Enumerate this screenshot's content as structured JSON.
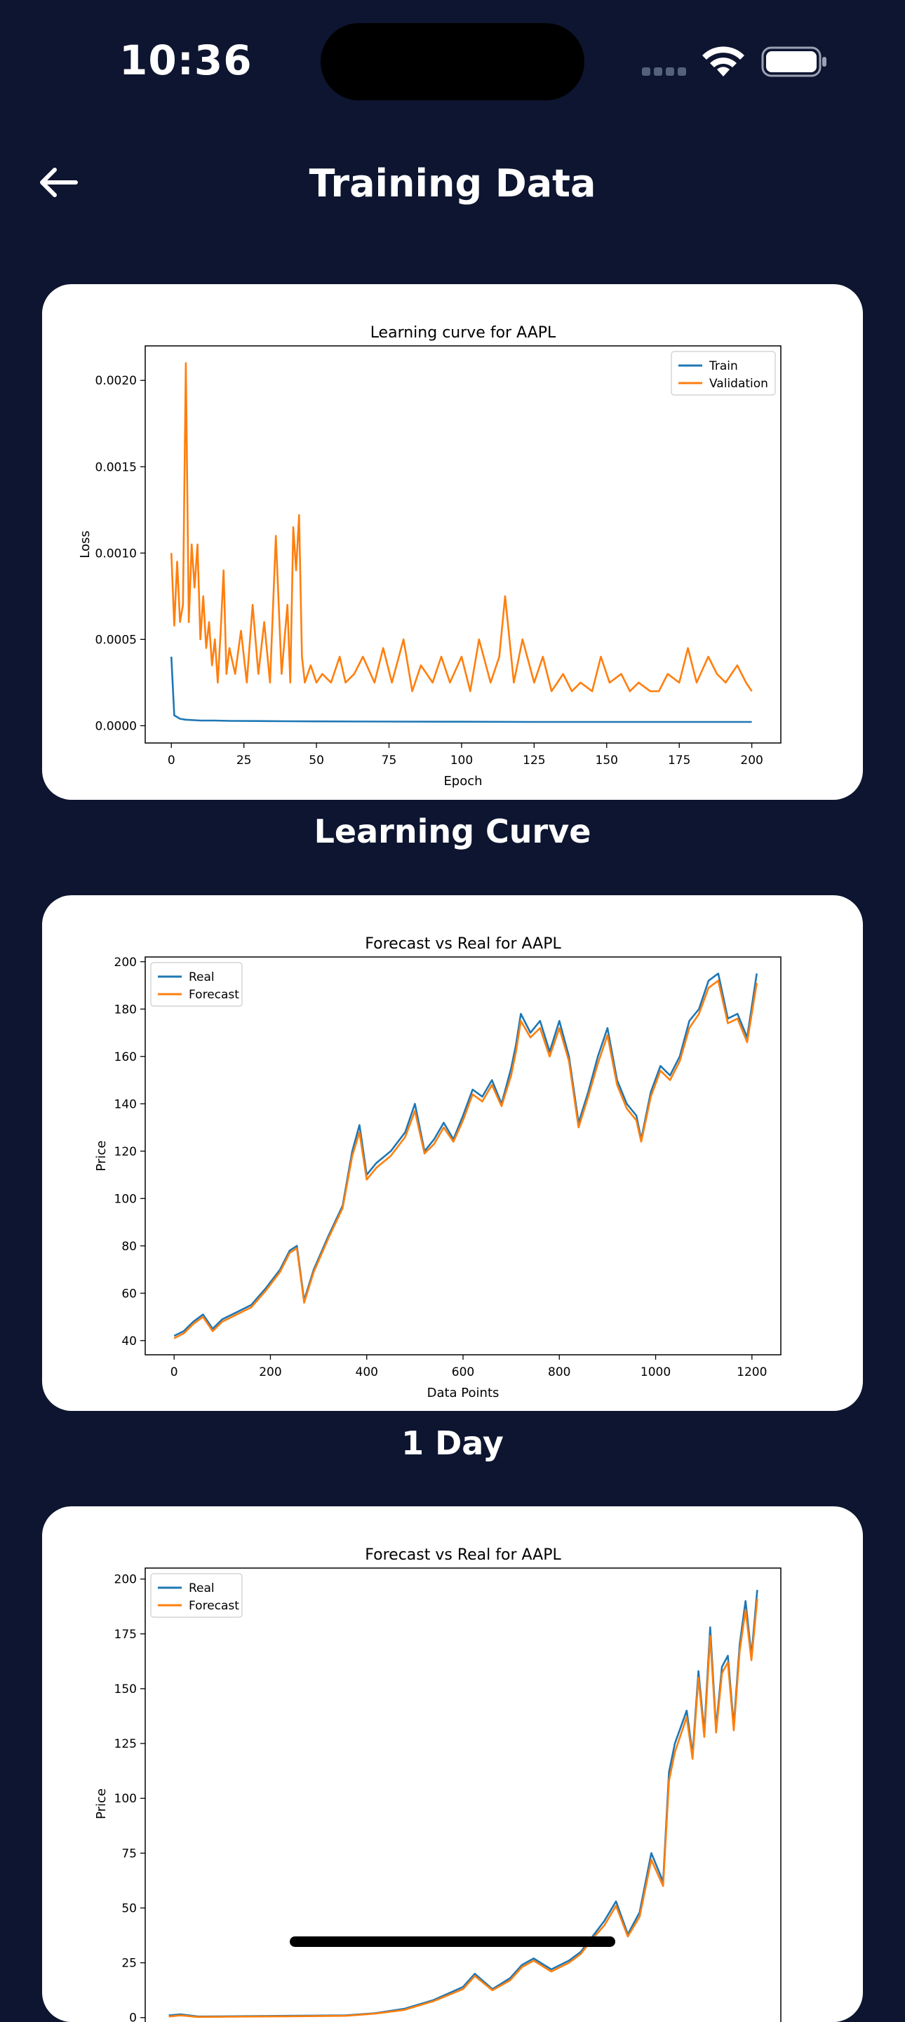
{
  "status_bar": {
    "time": "10:36"
  },
  "header": {
    "title": "Training Data"
  },
  "sections": [
    {
      "caption": "Learning Curve"
    },
    {
      "caption": "1 Day"
    },
    {
      "caption": ""
    }
  ],
  "colors": {
    "background": "#0d1530",
    "train": "#1f77b4",
    "validation": "#ff7f0e"
  },
  "chart_data": [
    {
      "type": "line",
      "title": "Learning curve for AAPL",
      "xlabel": "Epoch",
      "ylabel": "Loss",
      "xlim": [
        -9,
        210
      ],
      "ylim": [
        -0.0001,
        0.0022
      ],
      "xticks": [
        0,
        25,
        50,
        75,
        100,
        125,
        150,
        175,
        200
      ],
      "yticks": [
        0.0,
        0.0005,
        0.001,
        0.0015,
        0.002
      ],
      "ytick_labels": [
        "0.0000",
        "0.0005",
        "0.0010",
        "0.0015",
        "0.0020"
      ],
      "legend": "upper right",
      "series": [
        {
          "name": "Train",
          "color": "#1f77b4",
          "x": [
            0,
            1,
            3,
            5,
            10,
            15,
            20,
            30,
            40,
            50,
            75,
            100,
            125,
            150,
            175,
            200
          ],
          "y": [
            0.0004,
            6e-05,
            4e-05,
            3.5e-05,
            3e-05,
            3e-05,
            2.8e-05,
            2.7e-05,
            2.6e-05,
            2.5e-05,
            2.4e-05,
            2.3e-05,
            2.2e-05,
            2.2e-05,
            2.2e-05,
            2.2e-05
          ]
        },
        {
          "name": "Validation",
          "color": "#ff7f0e",
          "x": [
            0,
            1,
            2,
            3,
            4,
            5,
            6,
            7,
            8,
            9,
            10,
            11,
            12,
            13,
            14,
            15,
            16,
            17,
            18,
            19,
            20,
            22,
            24,
            26,
            28,
            30,
            32,
            34,
            36,
            38,
            40,
            41,
            42,
            43,
            44,
            45,
            46,
            48,
            50,
            52,
            55,
            58,
            60,
            63,
            66,
            70,
            73,
            76,
            80,
            83,
            86,
            90,
            93,
            96,
            100,
            103,
            106,
            110,
            113,
            115,
            118,
            121,
            125,
            128,
            131,
            135,
            138,
            141,
            145,
            148,
            151,
            155,
            158,
            161,
            165,
            168,
            171,
            175,
            178,
            181,
            185,
            188,
            191,
            195,
            198,
            200
          ],
          "y": [
            0.001,
            0.00058,
            0.00095,
            0.0006,
            0.0007,
            0.0021,
            0.0006,
            0.00105,
            0.0008,
            0.00105,
            0.0005,
            0.00075,
            0.00045,
            0.0006,
            0.00035,
            0.0005,
            0.00025,
            0.00055,
            0.0009,
            0.0003,
            0.00045,
            0.0003,
            0.00055,
            0.00025,
            0.0007,
            0.0003,
            0.0006,
            0.00025,
            0.0011,
            0.0003,
            0.0007,
            0.00025,
            0.00115,
            0.0009,
            0.00122,
            0.0004,
            0.00025,
            0.00035,
            0.00025,
            0.0003,
            0.00025,
            0.0004,
            0.00025,
            0.0003,
            0.0004,
            0.00025,
            0.00045,
            0.00025,
            0.0005,
            0.0002,
            0.00035,
            0.00025,
            0.0004,
            0.00025,
            0.0004,
            0.0002,
            0.0005,
            0.00025,
            0.0004,
            0.00075,
            0.00025,
            0.0005,
            0.00025,
            0.0004,
            0.0002,
            0.0003,
            0.0002,
            0.00025,
            0.0002,
            0.0004,
            0.00025,
            0.0003,
            0.0002,
            0.00025,
            0.0002,
            0.0002,
            0.0003,
            0.00025,
            0.00045,
            0.00025,
            0.0004,
            0.0003,
            0.00025,
            0.00035,
            0.00025,
            0.0002
          ]
        }
      ]
    },
    {
      "type": "line",
      "title": "Forecast vs Real for AAPL",
      "xlabel": "Data Points",
      "ylabel": "Price",
      "xlim": [
        -60,
        1260
      ],
      "ylim": [
        34,
        202
      ],
      "xticks": [
        0,
        200,
        400,
        600,
        800,
        1000,
        1200
      ],
      "yticks": [
        40,
        60,
        80,
        100,
        120,
        140,
        160,
        180,
        200
      ],
      "legend": "upper left",
      "series": [
        {
          "name": "Real",
          "color": "#1f77b4",
          "x": [
            0,
            20,
            40,
            60,
            80,
            100,
            130,
            160,
            190,
            220,
            240,
            255,
            270,
            290,
            320,
            350,
            370,
            385,
            400,
            420,
            450,
            480,
            500,
            520,
            540,
            560,
            580,
            600,
            620,
            640,
            660,
            680,
            700,
            710,
            720,
            740,
            760,
            780,
            800,
            820,
            840,
            860,
            880,
            900,
            920,
            940,
            960,
            970,
            990,
            1010,
            1030,
            1050,
            1070,
            1090,
            1110,
            1130,
            1150,
            1170,
            1190,
            1210
          ],
          "y": [
            42,
            44,
            48,
            51,
            45,
            49,
            52,
            55,
            62,
            70,
            78,
            80,
            57,
            70,
            84,
            97,
            120,
            131,
            110,
            115,
            120,
            128,
            140,
            120,
            125,
            132,
            125,
            135,
            146,
            143,
            150,
            140,
            155,
            165,
            178,
            170,
            175,
            162,
            175,
            160,
            132,
            145,
            160,
            172,
            150,
            140,
            135,
            125,
            145,
            156,
            152,
            160,
            175,
            180,
            192,
            195,
            176,
            178,
            168,
            195
          ]
        },
        {
          "name": "Forecast",
          "color": "#ff7f0e",
          "x": [
            0,
            20,
            40,
            60,
            80,
            100,
            130,
            160,
            190,
            220,
            240,
            255,
            270,
            290,
            320,
            350,
            370,
            385,
            400,
            420,
            450,
            480,
            500,
            520,
            540,
            560,
            580,
            600,
            620,
            640,
            660,
            680,
            700,
            710,
            720,
            740,
            760,
            780,
            800,
            820,
            840,
            860,
            880,
            900,
            920,
            940,
            960,
            970,
            990,
            1010,
            1030,
            1050,
            1070,
            1090,
            1110,
            1130,
            1150,
            1170,
            1190,
            1210
          ],
          "y": [
            41,
            43,
            47,
            50,
            44,
            48,
            51,
            54,
            61,
            69,
            77,
            79,
            56,
            69,
            83,
            96,
            118,
            128,
            108,
            113,
            118,
            126,
            137,
            119,
            123,
            130,
            124,
            133,
            144,
            141,
            148,
            139,
            152,
            162,
            175,
            168,
            172,
            160,
            172,
            158,
            130,
            143,
            157,
            169,
            148,
            138,
            133,
            124,
            143,
            154,
            150,
            158,
            172,
            178,
            189,
            192,
            174,
            176,
            166,
            191
          ]
        }
      ]
    },
    {
      "type": "line",
      "title": "Forecast vs Real for AAPL",
      "xlabel": "",
      "ylabel": "Price",
      "ylim": [
        -10,
        205
      ],
      "yticks": [
        0,
        25,
        50,
        75,
        100,
        125,
        150,
        175,
        200
      ],
      "legend": "upper left",
      "series": [
        {
          "name": "Real",
          "color": "#1f77b4",
          "x": [
            0,
            0.02,
            0.05,
            0.1,
            0.15,
            0.2,
            0.3,
            0.35,
            0.4,
            0.45,
            0.5,
            0.52,
            0.55,
            0.58,
            0.6,
            0.62,
            0.65,
            0.68,
            0.7,
            0.72,
            0.74,
            0.76,
            0.78,
            0.8,
            0.82,
            0.84,
            0.85,
            0.86,
            0.88,
            0.89,
            0.9,
            0.91,
            0.92,
            0.93,
            0.94,
            0.95,
            0.96,
            0.97,
            0.98,
            0.99,
            1.0
          ],
          "y": [
            1,
            1.5,
            0.5,
            0.6,
            0.7,
            0.8,
            1,
            2,
            4,
            8,
            14,
            20,
            13,
            18,
            24,
            27,
            22,
            26,
            30,
            37,
            44,
            53,
            38,
            48,
            75,
            62,
            112,
            125,
            140,
            120,
            158,
            130,
            178,
            132,
            160,
            165,
            133,
            170,
            190,
            165,
            195
          ]
        },
        {
          "name": "Forecast",
          "color": "#ff7f0e",
          "x": [
            0,
            0.02,
            0.05,
            0.1,
            0.15,
            0.2,
            0.3,
            0.35,
            0.4,
            0.45,
            0.5,
            0.52,
            0.55,
            0.58,
            0.6,
            0.62,
            0.65,
            0.68,
            0.7,
            0.72,
            0.74,
            0.76,
            0.78,
            0.8,
            0.82,
            0.84,
            0.85,
            0.86,
            0.88,
            0.89,
            0.9,
            0.91,
            0.92,
            0.93,
            0.94,
            0.95,
            0.96,
            0.97,
            0.98,
            0.99,
            1.0
          ],
          "y": [
            0.5,
            1,
            0.3,
            0.4,
            0.5,
            0.6,
            0.8,
            1.8,
            3.5,
            7.5,
            13,
            19,
            12.5,
            17,
            23,
            26,
            21,
            25,
            29,
            36,
            42,
            51,
            37,
            46,
            72,
            60,
            108,
            121,
            137,
            118,
            155,
            128,
            174,
            130,
            157,
            162,
            131,
            167,
            186,
            163,
            191
          ]
        }
      ]
    }
  ]
}
